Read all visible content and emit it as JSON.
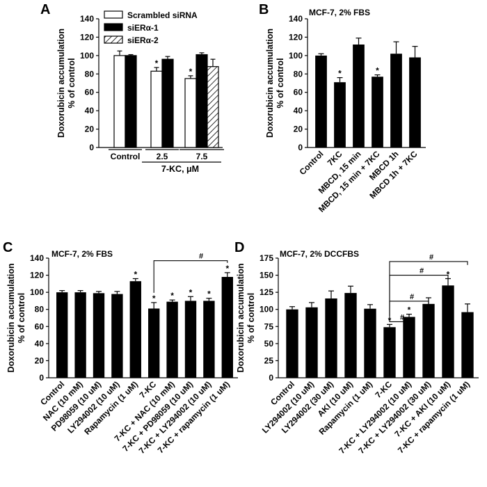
{
  "chart_data": [
    {
      "panel": "A",
      "type": "bar",
      "title": "",
      "ylabel": "Doxorubicin accumulation\n% of control",
      "xlabel": "7-KC, μM",
      "ylim": [
        0,
        140
      ],
      "yticks": [
        0,
        20,
        40,
        60,
        80,
        100,
        120,
        140
      ],
      "groups": [
        "Control",
        "2.5",
        "7.5"
      ],
      "series": [
        {
          "name": "Scrambled siRNA",
          "style": "white",
          "values": [
            100,
            83,
            75
          ],
          "errors": [
            5,
            4,
            3
          ],
          "stars": [
            false,
            true,
            true
          ]
        },
        {
          "name": "siERα-1",
          "style": "black",
          "values": [
            100,
            96,
            101
          ],
          "errors": [
            1,
            3,
            2
          ],
          "stars": [
            false,
            false,
            false
          ]
        },
        {
          "name": "siERα-2",
          "style": "hatched",
          "values": [
            null,
            null,
            88
          ],
          "errors": [
            null,
            null,
            8
          ],
          "stars": [
            false,
            false,
            false
          ]
        }
      ]
    },
    {
      "panel": "B",
      "type": "bar",
      "title": "MCF-7, 2% FBS",
      "ylabel": "Doxorubicin accumulation\n% of control",
      "ylim": [
        0,
        140
      ],
      "yticks": [
        0,
        20,
        40,
        60,
        80,
        100,
        120,
        140
      ],
      "categories": [
        "Control",
        "7KC",
        "MBCD, 15 min",
        "MBCD, 15 min + 7KC",
        "MBCD 1h",
        "MBCD 1h + 7KC"
      ],
      "values": [
        100,
        71,
        112,
        77,
        102,
        98
      ],
      "errors": [
        2,
        5,
        7,
        2,
        13,
        12
      ],
      "stars": [
        false,
        true,
        false,
        true,
        false,
        false
      ]
    },
    {
      "panel": "C",
      "type": "bar",
      "title": "MCF-7, 2% FBS",
      "ylabel": "Doxorubicin accumulation\n% of control",
      "ylim": [
        0,
        140
      ],
      "yticks": [
        0,
        20,
        40,
        60,
        80,
        100,
        120,
        140
      ],
      "categories": [
        "Control",
        "NAC (10 mM)",
        "PD98059 (10 uM)",
        "LY294002 (10 uM)",
        "Rapamycin (1 uM)",
        "7-KC",
        "7-KC + NAC (10 mM)",
        "7-KC + PD98059 (10 uM)",
        "7-KC + LY294002 (10 uM)",
        "7-KC + rapamycin (1 uM)"
      ],
      "values": [
        100,
        100,
        99,
        98,
        113,
        81,
        89,
        90,
        90,
        118
      ],
      "errors": [
        2,
        2,
        2,
        3,
        3,
        7,
        2,
        5,
        3,
        5
      ],
      "stars": [
        false,
        false,
        false,
        false,
        true,
        true,
        true,
        true,
        true,
        true
      ],
      "brackets": [
        {
          "from": 5,
          "to": 9,
          "label": "#"
        }
      ]
    },
    {
      "panel": "D",
      "type": "bar",
      "title": "MCF-7, 2% DCCFBS",
      "ylabel": "Doxorubicin accumulation\n% of control",
      "ylim": [
        0,
        175
      ],
      "yticks": [
        0,
        25,
        50,
        75,
        100,
        125,
        150,
        175
      ],
      "categories": [
        "Control",
        "LY294002 (10 uM)",
        "LY294002 (30 uM)",
        "AKI (10 uM)",
        "Rapamycin (1 uM)",
        "7-KC",
        "7-KC + LY294002 (10 uM)",
        "7-KC + LY294002 (30 uM)",
        "7-KC + AKI (10 uM)",
        "7-KC + rapamycin (1 uM)"
      ],
      "values": [
        100,
        103,
        116,
        124,
        101,
        74,
        89,
        108,
        135,
        96
      ],
      "errors": [
        4,
        7,
        11,
        10,
        6,
        4,
        4,
        9,
        10,
        12
      ],
      "stars": [
        false,
        false,
        false,
        false,
        false,
        true,
        true,
        false,
        true,
        false
      ],
      "brackets": [
        {
          "from": 5,
          "to": 6,
          "label": "#"
        },
        {
          "from": 5,
          "to": 7,
          "label": "#"
        },
        {
          "from": 5,
          "to": 8,
          "label": "#"
        },
        {
          "from": 5,
          "to": 9,
          "label": "#"
        }
      ]
    }
  ]
}
